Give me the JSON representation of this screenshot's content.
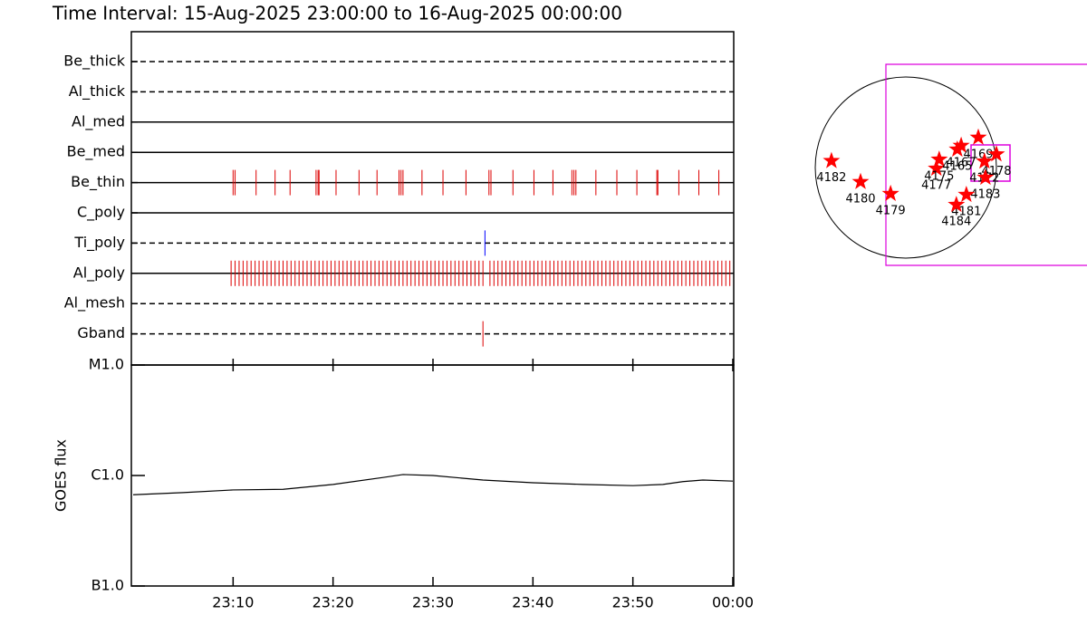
{
  "chart_data": [
    {
      "type": "event",
      "title": "Time Interval: 15-Aug-2025 23:00:00 to 16-Aug-2025 00:00:00",
      "xlim": [
        0,
        60
      ],
      "series": [
        {
          "name": "Be_thick",
          "line_style": "dashed",
          "color": "#dd0000",
          "values": []
        },
        {
          "name": "Al_thick",
          "line_style": "dashed",
          "color": "#dd0000",
          "values": []
        },
        {
          "name": "Al_med",
          "line_style": "solid",
          "color": "#dd0000",
          "values": []
        },
        {
          "name": "Be_med",
          "line_style": "solid",
          "color": "#dd0000",
          "values": []
        },
        {
          "name": "Be_thin",
          "line_style": "solid",
          "color": "#dd0000",
          "values": [
            10.0,
            10.2,
            12.3,
            14.2,
            15.7,
            18.3,
            18.5,
            18.6,
            20.3,
            22.6,
            24.4,
            26.6,
            26.8,
            27.0,
            28.9,
            31.0,
            33.3,
            35.6,
            35.8,
            38.0,
            40.1,
            42.0,
            43.9,
            44.1,
            44.3,
            46.3,
            48.4,
            50.4,
            52.4,
            52.5,
            54.6,
            56.6,
            58.6
          ]
        },
        {
          "name": "C_poly",
          "line_style": "solid",
          "color": "#dd0000",
          "values": []
        },
        {
          "name": "Ti_poly",
          "line_style": "dashed",
          "color": "#0000ff",
          "values": [
            35.2
          ]
        },
        {
          "name": "Al_poly",
          "line_style": "solid",
          "color": "#dd0000",
          "values": [
            9.8,
            10.2,
            10.6,
            11.0,
            11.4,
            11.8,
            12.2,
            12.6,
            13.0,
            13.4,
            13.8,
            14.2,
            14.6,
            15.0,
            15.4,
            15.8,
            16.2,
            16.6,
            17.0,
            17.4,
            17.8,
            18.2,
            18.6,
            19.0,
            19.4,
            19.8,
            20.2,
            20.6,
            21.0,
            21.4,
            21.8,
            22.2,
            22.6,
            23.0,
            23.4,
            23.8,
            24.2,
            24.6,
            25.0,
            25.4,
            25.8,
            26.2,
            26.6,
            27.0,
            27.4,
            27.8,
            28.2,
            28.6,
            29.0,
            29.4,
            29.8,
            30.2,
            30.6,
            31.0,
            31.4,
            31.8,
            32.2,
            32.6,
            33.0,
            33.4,
            33.8,
            34.2,
            34.6,
            35.0,
            35.7,
            36.1,
            36.5,
            36.9,
            37.3,
            37.7,
            38.1,
            38.5,
            38.9,
            39.3,
            39.7,
            40.1,
            40.5,
            40.9,
            41.3,
            41.7,
            42.1,
            42.5,
            42.9,
            43.3,
            43.7,
            44.1,
            44.5,
            44.9,
            45.3,
            45.7,
            46.1,
            46.5,
            46.9,
            47.3,
            47.7,
            48.1,
            48.5,
            48.9,
            49.3,
            49.7,
            50.1,
            50.5,
            50.9,
            51.3,
            51.7,
            52.1,
            52.5,
            52.9,
            53.3,
            53.7,
            54.1,
            54.5,
            54.9,
            55.3,
            55.7,
            56.1,
            56.5,
            56.9,
            57.3,
            57.7,
            58.1,
            58.5,
            58.9,
            59.3,
            59.7
          ]
        },
        {
          "name": "Al_mesh",
          "line_style": "dashed",
          "color": "#dd0000",
          "values": []
        },
        {
          "name": "Gband",
          "line_style": "dashed",
          "color": "#dd0000",
          "values": [
            35.0
          ]
        }
      ]
    },
    {
      "type": "line",
      "ylabel": "GOES flux",
      "log_scale": true,
      "color": "#000000",
      "xlim": [
        0,
        60
      ],
      "xticks": [
        {
          "value": 10,
          "label": "23:10"
        },
        {
          "value": 20,
          "label": "23:20"
        },
        {
          "value": 30,
          "label": "23:30"
        },
        {
          "value": 40,
          "label": "23:40"
        },
        {
          "value": 50,
          "label": "23:50"
        },
        {
          "value": 60,
          "label": "00:00"
        }
      ],
      "ylim": [
        1e-07,
        1e-05
      ],
      "yticks": [
        {
          "value": 1e-07,
          "label": "B1.0"
        },
        {
          "value": 1e-06,
          "label": "C1.0"
        },
        {
          "value": 1e-05,
          "label": "M1.0"
        }
      ],
      "x": [
        0,
        5,
        10,
        15,
        20,
        25,
        27,
        30,
        35,
        40,
        45,
        50,
        53,
        55,
        57,
        60
      ],
      "values": [
        6.7e-07,
        7e-07,
        7.4e-07,
        7.5e-07,
        8.3e-07,
        9.6e-07,
        1.02e-06,
        1e-06,
        9.1e-07,
        8.6e-07,
        8.3e-07,
        8.1e-07,
        8.3e-07,
        8.8e-07,
        9.1e-07,
        8.9e-07
      ]
    },
    {
      "type": "scatter",
      "color": "#ff0000",
      "labels": [
        "4182",
        "4180",
        "4179",
        "4177",
        "4175",
        "4165",
        "4167",
        "4169",
        "4178",
        "4172",
        "4183",
        "4181",
        "4184"
      ],
      "x": [
        -780,
        -475,
        -160,
        320,
        350,
        540,
        580,
        760,
        950,
        825,
        835,
        635,
        530
      ],
      "y": [
        70,
        -150,
        -275,
        -10,
        85,
        190,
        230,
        315,
        140,
        65,
        -105,
        -285,
        -390
      ]
    }
  ]
}
